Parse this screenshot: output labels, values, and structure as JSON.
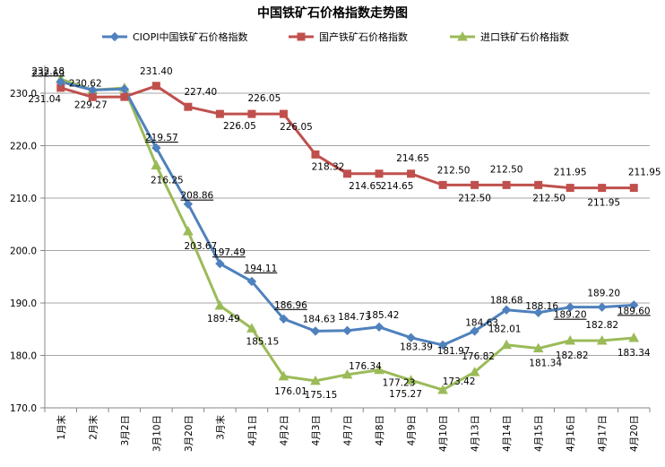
{
  "chart_data": {
    "type": "line",
    "title": "中国铁矿石价格指数走势图",
    "xlabel": "",
    "ylabel": "",
    "ylim": [
      170,
      230
    ],
    "yticks": [
      "170.0",
      "180.0",
      "190.0",
      "200.0",
      "210.0",
      "220.0",
      "230.0"
    ],
    "grid": "horizontal",
    "legend_position": "top",
    "categories": [
      "1月末",
      "2月末",
      "3月2日",
      "3月10日",
      "3月20日",
      "3月末",
      "4月1日",
      "4月2日",
      "4月3日",
      "4月7日",
      "4月8日",
      "4月9日",
      "4月10日",
      "4月13日",
      "4月14日",
      "4月15日",
      "4月16日",
      "4月17日",
      "4月20日"
    ],
    "series": [
      {
        "name": "CIOPI中国铁矿石价格指数",
        "color": "#4f81bd",
        "marker": "diamond",
        "values": [
          232.18,
          230.62,
          230.8,
          219.57,
          208.86,
          197.49,
          194.11,
          186.96,
          184.63,
          184.73,
          185.42,
          183.39,
          181.97,
          184.63,
          188.68,
          188.16,
          189.2,
          189.2,
          189.6
        ],
        "labels": [
          "232.18",
          "230.62",
          "",
          "219.57",
          "208.86",
          "197.49",
          "194.11",
          "186.96",
          "184.63",
          "184.73",
          "185.42",
          "183.39",
          "181.97",
          "184.63",
          "188.68",
          "188.16",
          "189.20",
          "189.20",
          "189.60"
        ]
      },
      {
        "name": "国产铁矿石价格指数",
        "color": "#c0504d",
        "marker": "square",
        "values": [
          231.04,
          229.27,
          229.3,
          231.4,
          227.4,
          226.05,
          226.05,
          226.05,
          218.32,
          214.65,
          214.65,
          214.65,
          212.5,
          212.5,
          212.5,
          212.5,
          211.95,
          211.95,
          211.95
        ],
        "labels": [
          "231.04",
          "229.27",
          "",
          "231.40",
          "227.40",
          "226.05",
          "226.05",
          "226.05",
          "218.32",
          "214.65",
          "214.65",
          "214.65",
          "212.50",
          "212.50",
          "212.50",
          "212.50",
          "211.95",
          "211.95",
          "211.95"
        ]
      },
      {
        "name": "进口铁矿石价格指数",
        "color": "#9bbb59",
        "marker": "triangle",
        "values": [
          232.69,
          230.62,
          231.0,
          216.25,
          203.67,
          189.49,
          185.15,
          176.01,
          175.15,
          176.34,
          177.23,
          175.27,
          173.42,
          176.82,
          182.01,
          181.34,
          182.82,
          182.82,
          183.34
        ],
        "labels": [
          "232.69",
          "",
          "",
          "216.25",
          "203.67",
          "189.49",
          "185.15",
          "176.01",
          "175.15",
          "176.34",
          "177.23",
          "175.27",
          "173.42",
          "176.82",
          "182.01",
          "181.34",
          "182.82",
          "182.82",
          "183.34"
        ]
      }
    ]
  }
}
